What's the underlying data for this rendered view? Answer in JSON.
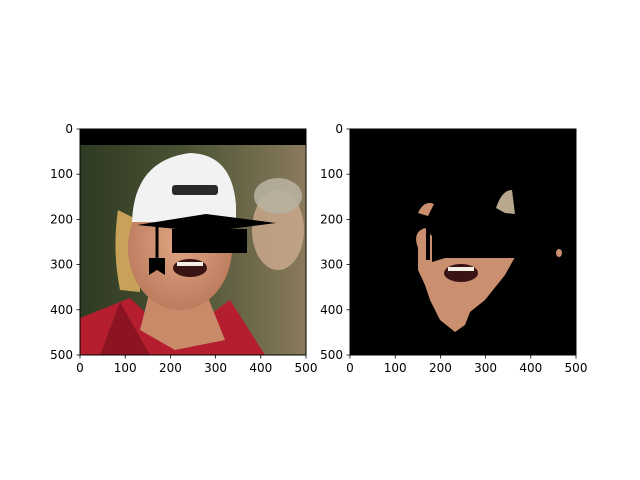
{
  "chart_data": [
    {
      "type": "image",
      "title": "",
      "xlabel": "",
      "ylabel": "",
      "xlim": [
        0,
        500
      ],
      "ylim": [
        500,
        0
      ],
      "xticks": [
        0,
        100,
        200,
        300,
        400,
        500
      ],
      "yticks": [
        0,
        100,
        200,
        300,
        400,
        500
      ],
      "xtick_labels": [
        "0",
        "100",
        "200",
        "300",
        "400",
        "500"
      ],
      "ytick_labels": [
        "0",
        "100",
        "200",
        "300",
        "400",
        "500"
      ],
      "grid": false,
      "content": "photo of a man's face wearing a white cap with a black graduation-cap overlay"
    },
    {
      "type": "image",
      "title": "",
      "xlabel": "",
      "ylabel": "",
      "xlim": [
        0,
        500
      ],
      "ylim": [
        500,
        0
      ],
      "xticks": [
        0,
        100,
        200,
        300,
        400,
        500
      ],
      "yticks": [
        0,
        100,
        200,
        300,
        400,
        500
      ],
      "xtick_labels": [
        "0",
        "100",
        "200",
        "300",
        "400",
        "500"
      ],
      "ytick_labels": [
        "0",
        "100",
        "200",
        "300",
        "400",
        "500"
      ],
      "grid": false,
      "content": "segmentation mask showing only skin-colored face region on black background"
    }
  ],
  "colors": {
    "background_black": "#000000",
    "skin": "#c98f6e",
    "shirt_red": "#b41e2e",
    "cap_white": "#f2f2f2",
    "hair": "#c9a25a"
  }
}
